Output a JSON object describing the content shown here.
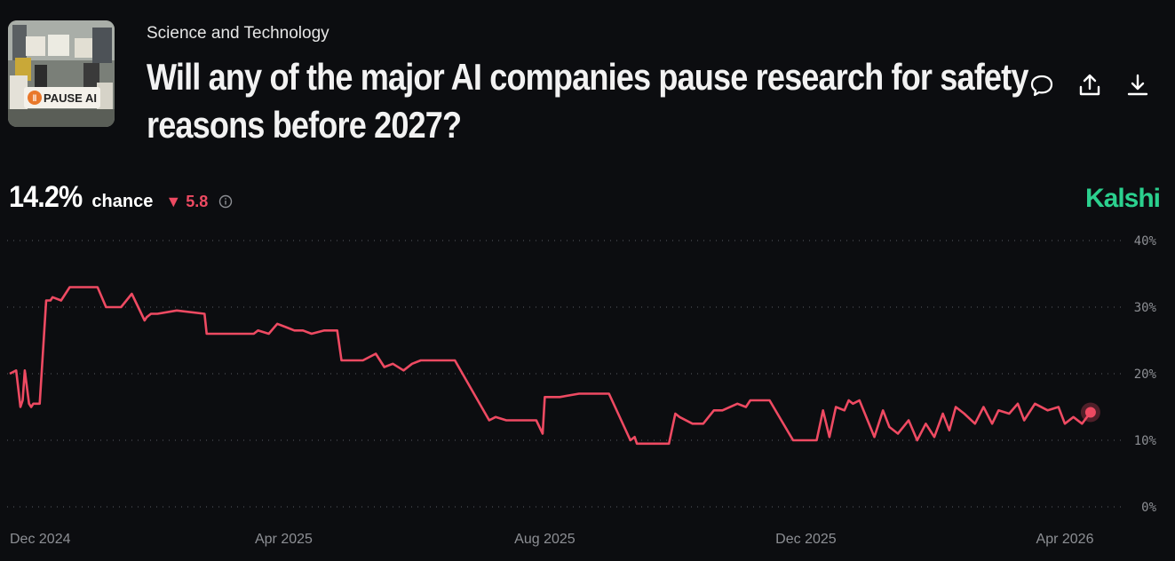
{
  "header": {
    "category": "Science and Technology",
    "title_line1": "Will any of the major AI companies pause research for safety",
    "title_line2": "reasons before 2027?",
    "thumbnail_text": "PAUSE AI"
  },
  "actions": {
    "icons": [
      "comment-icon",
      "share-icon",
      "download-icon"
    ]
  },
  "stats": {
    "probability": "14.2%",
    "chance_label": "chance",
    "change": "5.8",
    "change_direction": "down"
  },
  "brand": {
    "name": "Kalshi",
    "color": "#2bd08e"
  },
  "chart_data": {
    "type": "line",
    "xlabel": "",
    "ylabel": "",
    "ylim": [
      0,
      40
    ],
    "y_ticks": [
      "0%",
      "10%",
      "20%",
      "30%",
      "40%"
    ],
    "x_ticks": [
      "Dec 2024",
      "Apr 2025",
      "Aug 2025",
      "Dec 2025",
      "Apr 2026"
    ],
    "x_tick_dates": [
      "2024-12-01",
      "2025-04-01",
      "2025-08-01",
      "2025-12-01",
      "2026-04-01"
    ],
    "grid": true,
    "line_color": "#ee4a62",
    "series": [
      {
        "x": [
          "2024-11-24",
          "2024-11-27",
          "2024-11-29",
          "2024-11-30",
          "2024-12-01",
          "2024-12-03",
          "2024-12-04",
          "2024-12-05",
          "2024-12-08",
          "2024-12-11",
          "2024-12-13",
          "2024-12-14",
          "2024-12-18",
          "2024-12-22",
          "2024-12-26",
          "2025-01-04",
          "2025-01-08",
          "2025-01-15",
          "2025-01-20",
          "2025-01-26",
          "2025-01-27",
          "2025-01-29",
          "2025-02-01",
          "2025-02-10",
          "2025-02-23",
          "2025-02-24",
          "2025-03-07",
          "2025-03-18",
          "2025-03-20",
          "2025-03-25",
          "2025-03-29",
          "2025-04-02",
          "2025-04-06",
          "2025-04-10",
          "2025-04-14",
          "2025-04-20",
          "2025-04-26",
          "2025-04-28",
          "2025-05-08",
          "2025-05-14",
          "2025-05-18",
          "2025-05-22",
          "2025-05-27",
          "2025-05-31",
          "2025-06-04",
          "2025-06-08",
          "2025-06-14",
          "2025-06-20",
          "2025-07-06",
          "2025-07-09",
          "2025-07-14",
          "2025-07-20",
          "2025-07-28",
          "2025-07-31",
          "2025-08-01",
          "2025-08-08",
          "2025-08-17",
          "2025-08-21",
          "2025-08-25",
          "2025-08-31",
          "2025-09-10",
          "2025-09-12",
          "2025-09-13",
          "2025-09-18",
          "2025-09-28",
          "2025-10-01",
          "2025-10-03",
          "2025-10-09",
          "2025-10-14",
          "2025-10-19",
          "2025-10-23",
          "2025-10-30",
          "2025-11-03",
          "2025-11-05",
          "2025-11-08",
          "2025-11-14",
          "2025-11-25",
          "2025-11-27",
          "2025-12-06",
          "2025-12-09",
          "2025-12-12",
          "2025-12-15",
          "2025-12-19",
          "2025-12-21",
          "2025-12-23",
          "2025-12-26",
          "2026-01-02",
          "2026-01-06",
          "2026-01-09",
          "2026-01-13",
          "2026-01-18",
          "2026-01-22",
          "2026-01-26",
          "2026-01-30",
          "2026-02-03",
          "2026-02-06",
          "2026-02-09",
          "2026-02-13",
          "2026-02-18",
          "2026-02-22",
          "2026-02-26",
          "2026-03-01",
          "2026-03-06",
          "2026-03-10",
          "2026-03-13",
          "2026-03-18",
          "2026-03-24",
          "2026-03-29",
          "2026-04-01",
          "2026-04-05",
          "2026-04-09",
          "2026-04-13"
        ],
        "y": [
          20.0,
          20.5,
          15.0,
          16.0,
          20.5,
          15.5,
          15.0,
          15.5,
          15.5,
          31.0,
          31.0,
          31.5,
          31.0,
          33.0,
          33.0,
          33.0,
          30.0,
          30.0,
          32.0,
          28.0,
          28.5,
          29.0,
          29.0,
          29.5,
          29.0,
          26.0,
          26.0,
          26.0,
          26.5,
          26.0,
          27.5,
          27.0,
          26.5,
          26.5,
          26.0,
          26.5,
          26.5,
          22.0,
          22.0,
          23.0,
          21.0,
          21.5,
          20.5,
          21.5,
          22.0,
          22.0,
          22.0,
          22.0,
          13.0,
          13.5,
          13.0,
          13.0,
          13.0,
          11.0,
          16.5,
          16.5,
          17.0,
          17.0,
          17.0,
          17.0,
          10.0,
          10.5,
          9.5,
          9.5,
          9.5,
          14.0,
          13.5,
          12.5,
          12.5,
          14.5,
          14.5,
          15.5,
          15.0,
          16.0,
          16.0,
          16.0,
          10.0,
          10.0,
          10.0,
          14.5,
          10.5,
          15.0,
          14.5,
          16.0,
          15.5,
          16.0,
          10.5,
          14.5,
          12.0,
          11.0,
          13.0,
          10.0,
          12.5,
          10.5,
          14.0,
          11.5,
          15.0,
          14.0,
          12.5,
          15.0,
          12.5,
          14.5,
          14.0,
          15.5,
          13.0,
          15.5,
          14.5,
          15.0,
          12.5,
          13.5,
          12.5,
          14.2
        ]
      }
    ]
  }
}
